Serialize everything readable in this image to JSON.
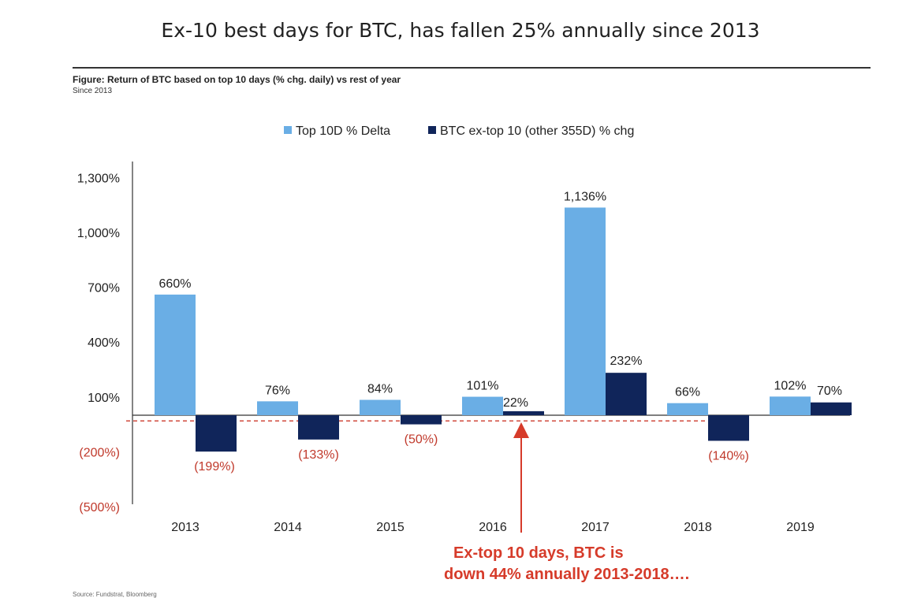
{
  "headline": "Ex-10 best days for BTC, has fallen 25% annually since 2013",
  "figure": {
    "title": "Figure: Return of BTC based on top 10 days (% chg. daily) vs rest of year",
    "subtitle": "Since 2013"
  },
  "source": "Source: Fundstrat, Bloomberg",
  "chart_data": {
    "type": "bar",
    "categories": [
      "2013",
      "2014",
      "2015",
      "2016",
      "2017",
      "2018",
      "2019"
    ],
    "series": [
      {
        "name": "Top 10D % Delta",
        "values": [
          660,
          76,
          84,
          101,
          1136,
          66,
          102
        ],
        "labels": [
          "660%",
          "76%",
          "84%",
          "101%",
          "1,136%",
          "66%",
          "102%"
        ],
        "color": "#6aaee5"
      },
      {
        "name": "BTC ex-top 10 (other 355D) % chg",
        "values": [
          -199,
          -133,
          -50,
          22,
          232,
          -140,
          70
        ],
        "labels": [
          "(199%)",
          "(133%)",
          "(50%)",
          "22%",
          "232%",
          "(140%)",
          "70%"
        ],
        "color": "#10255a"
      }
    ],
    "y_ticks": [
      1300,
      1000,
      700,
      400,
      100,
      -200,
      -500
    ],
    "y_tick_labels": [
      "1,300%",
      "1,000%",
      "700%",
      "400%",
      "100%",
      "(200%)",
      "(500%)"
    ],
    "ylim": [
      -500,
      1300
    ],
    "legend_position": "top",
    "reference_line": {
      "value": -44,
      "style": "dashed",
      "color": "#d04a3c"
    },
    "annotation": {
      "text_lines": [
        "Ex-top 10 days, BTC is",
        "down 44% annually 2013-2018…."
      ],
      "color": "#d63b2a"
    },
    "negative_label_color": "#c0392b",
    "axis_color": "#333333",
    "grid": false
  }
}
